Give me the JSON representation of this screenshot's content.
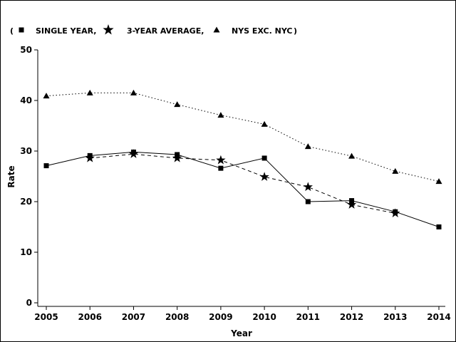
{
  "chart_data": {
    "type": "line",
    "xlabel": "Year",
    "ylabel": "Rate",
    "ylim": [
      0,
      50
    ],
    "yticks": [
      "0",
      "10",
      "20",
      "30",
      "40",
      "50"
    ],
    "x": [
      "2005",
      "2006",
      "2007",
      "2008",
      "2009",
      "2010",
      "2011",
      "2012",
      "2013",
      "2014"
    ],
    "legend": {
      "open": "(",
      "close": ")",
      "placement": "top-left"
    },
    "series": [
      {
        "name": "SINGLE YEAR,",
        "marker": "square",
        "line": "solid",
        "values": [
          27.1,
          29.1,
          29.8,
          29.3,
          26.6,
          28.6,
          20.0,
          20.2,
          18.0,
          15.0
        ]
      },
      {
        "name": "3-YEAR AVERAGE,",
        "marker": "star",
        "line": "dashed",
        "values": [
          null,
          28.6,
          29.4,
          28.6,
          28.2,
          24.9,
          22.9,
          19.4,
          17.7,
          null
        ]
      },
      {
        "name": "NYS EXC. NYC",
        "marker": "triangle",
        "line": "dotted",
        "values": [
          40.9,
          41.5,
          41.5,
          39.2,
          37.1,
          35.3,
          30.9,
          29.0,
          26.0,
          24.0
        ]
      }
    ]
  }
}
